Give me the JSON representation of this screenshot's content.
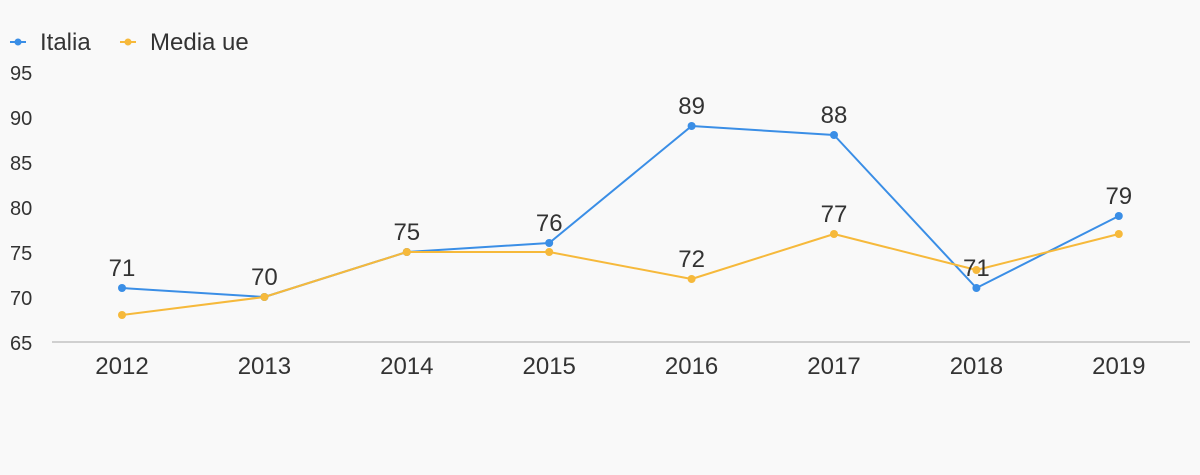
{
  "chart_data": {
    "type": "line",
    "categories": [
      "2012",
      "2013",
      "2014",
      "2015",
      "2016",
      "2017",
      "2018",
      "2019"
    ],
    "series": [
      {
        "name": "Italia",
        "color": "#3a8ee6",
        "values": [
          71,
          70,
          75,
          76,
          89,
          88,
          71,
          79
        ],
        "data_labels": [
          "71",
          "70",
          "75",
          "76",
          "89",
          "88",
          "71",
          "79"
        ]
      },
      {
        "name": "Media ue",
        "color": "#f6b93b",
        "values": [
          68,
          70,
          75,
          75,
          72,
          77,
          73,
          77
        ],
        "data_labels": [
          "",
          "",
          "",
          "",
          "72",
          "77",
          "",
          ""
        ]
      }
    ],
    "ylim": [
      65,
      95
    ],
    "yticks": [
      "65",
      "70",
      "75",
      "80",
      "85",
      "90",
      "95"
    ],
    "grid": false,
    "legend": "top-left"
  }
}
